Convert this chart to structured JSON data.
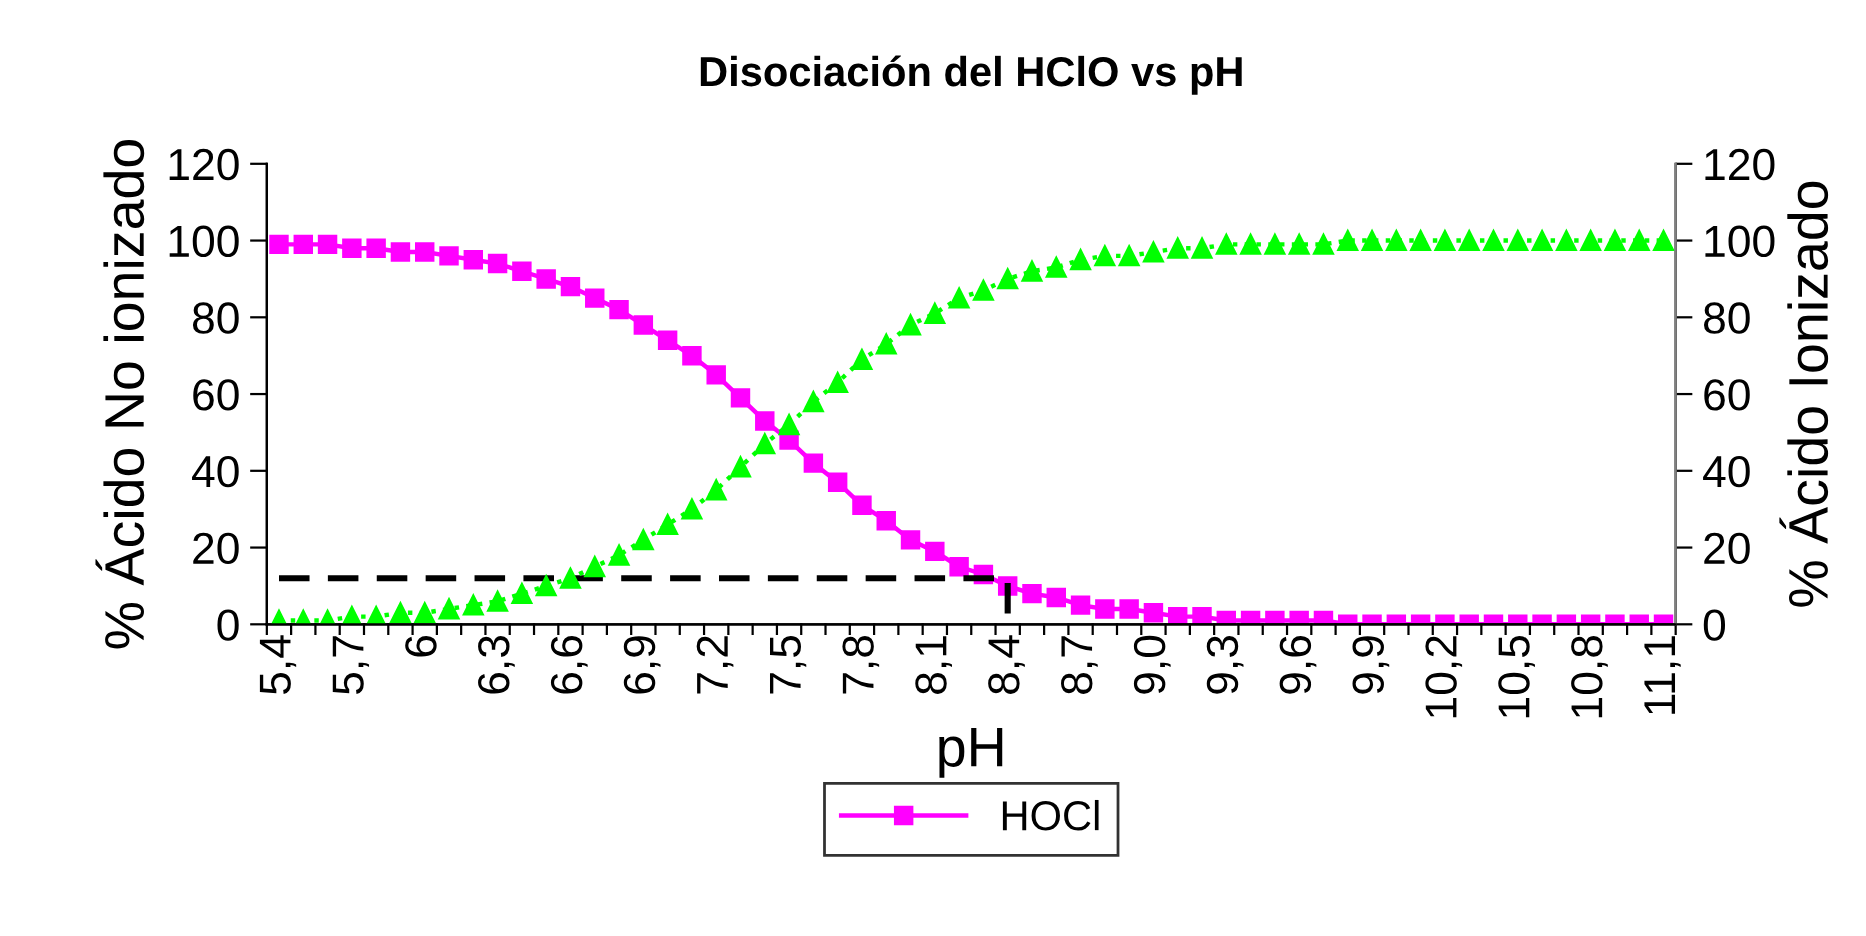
{
  "chart_data": {
    "type": "line",
    "title": "Disociación del HClO vs pH",
    "xlabel": "pH",
    "ylabel": "% Ácido No ionizado",
    "y2label": "% Ácido Ionizado",
    "categories": [
      "5,4",
      null,
      null,
      "5,7",
      null,
      null,
      "6",
      null,
      null,
      "6,3",
      null,
      null,
      "6,6",
      null,
      null,
      "6,9",
      null,
      null,
      "7,2",
      null,
      null,
      "7,5",
      null,
      null,
      "7,8",
      null,
      null,
      "8,1",
      null,
      null,
      "8,4",
      null,
      null,
      "8,7",
      null,
      null,
      "9,0",
      null,
      null,
      "9,3",
      null,
      null,
      "9,6",
      null,
      null,
      "9,9",
      null,
      null,
      "10,2",
      null,
      null,
      "10,5",
      null,
      null,
      "10,8",
      null,
      null,
      "11,1"
    ],
    "series": [
      {
        "name": "HOCl",
        "color": "#ff00ff",
        "marker": "square",
        "line_style": "solid",
        "values": [
          99,
          99,
          99,
          98,
          98,
          97,
          97,
          96,
          95,
          94,
          92,
          90,
          88,
          85,
          82,
          78,
          74,
          70,
          65,
          59,
          53,
          48,
          42,
          37,
          31,
          27,
          22,
          19,
          15,
          13,
          10,
          8,
          7,
          5,
          4,
          4,
          3,
          2,
          2,
          1,
          1,
          1,
          1,
          1,
          0,
          0,
          0,
          0,
          0,
          0,
          0,
          0,
          0,
          0,
          0,
          0,
          0,
          0
        ]
      },
      {
        "color": "#00ff00",
        "marker": "triangle",
        "line_style": "dotted",
        "axis": "y2",
        "values": [
          1,
          1,
          1,
          2,
          2,
          3,
          3,
          4,
          5,
          6,
          8,
          10,
          12,
          15,
          18,
          22,
          26,
          30,
          35,
          41,
          47,
          52,
          58,
          63,
          69,
          73,
          78,
          81,
          85,
          87,
          90,
          92,
          93,
          95,
          96,
          96,
          97,
          98,
          98,
          99,
          99,
          99,
          99,
          99,
          100,
          100,
          100,
          100,
          100,
          100,
          100,
          100,
          100,
          100,
          100,
          100,
          100,
          100
        ]
      },
      {
        "color": "#000000",
        "marker": "none",
        "line_style": "dashed",
        "x": [
          "5,4",
          "8,4",
          "8,4"
        ],
        "values": [
          12,
          12,
          0
        ]
      }
    ],
    "ylim": [
      0,
      120
    ],
    "yticks": [
      0,
      20,
      40,
      60,
      80,
      100,
      120
    ],
    "y2lim": [
      0,
      120
    ],
    "y2ticks": [
      0,
      20,
      40,
      60,
      80,
      100,
      120
    ],
    "grid": false,
    "legend": "bottom"
  }
}
